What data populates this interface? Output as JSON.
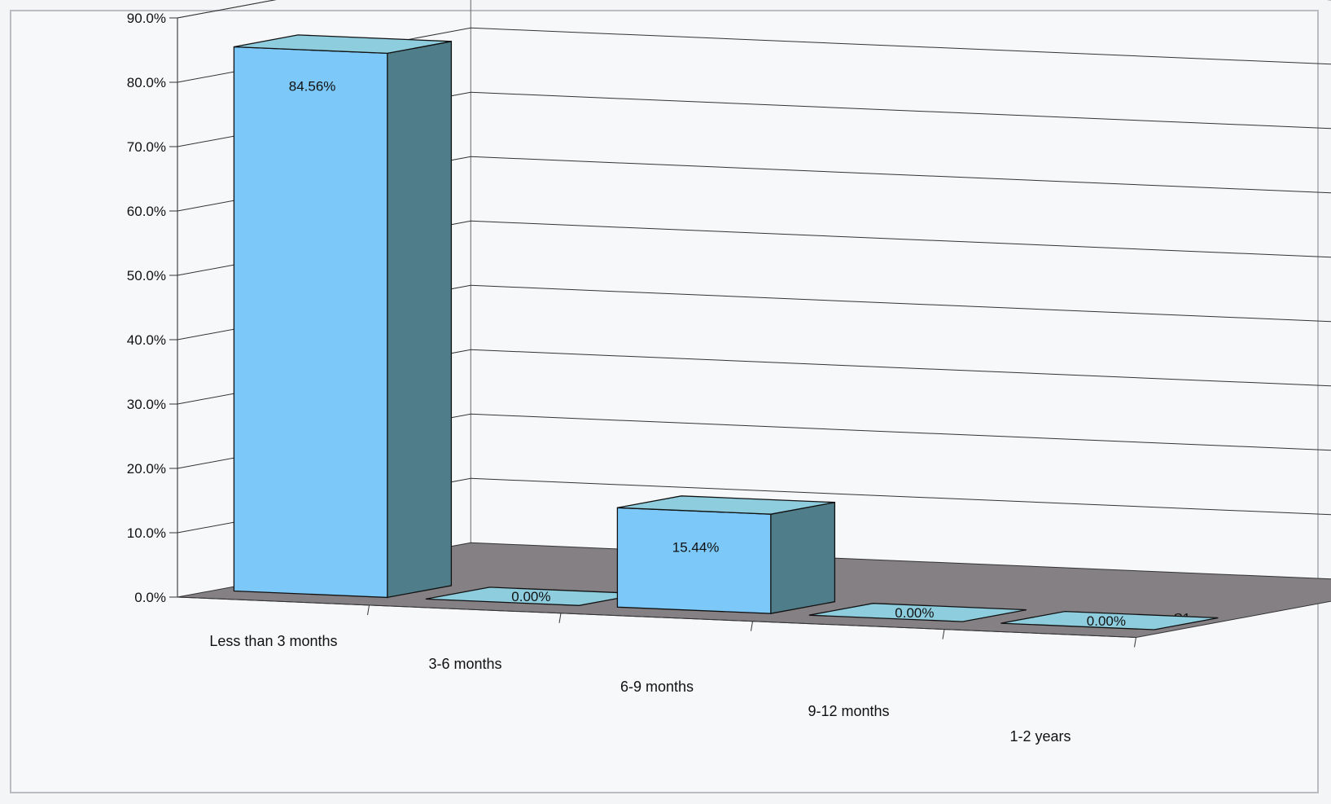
{
  "chart_data": {
    "type": "bar",
    "style": "3d",
    "categories": [
      "Less than 3 months",
      "3-6 months",
      "6-9 months",
      "9-12 months",
      "1-2 years"
    ],
    "series": [
      {
        "name": "S1",
        "values": [
          84.56,
          0.0,
          15.44,
          0.0,
          0.0
        ],
        "labels": [
          "84.56%",
          "0.00%",
          "15.44%",
          "0.00%",
          "0.00%"
        ]
      }
    ],
    "y_ticks": [
      "0.0%",
      "10.0%",
      "20.0%",
      "30.0%",
      "40.0%",
      "50.0%",
      "60.0%",
      "70.0%",
      "80.0%",
      "90.0%"
    ],
    "ylim": [
      0,
      90
    ],
    "grid": true,
    "colors": {
      "bar_front": "#7cc8f8",
      "bar_top": "#8ecdde",
      "bar_side": "#4f7d8a",
      "floor": "#858083",
      "background": "#f7f8fa"
    }
  }
}
